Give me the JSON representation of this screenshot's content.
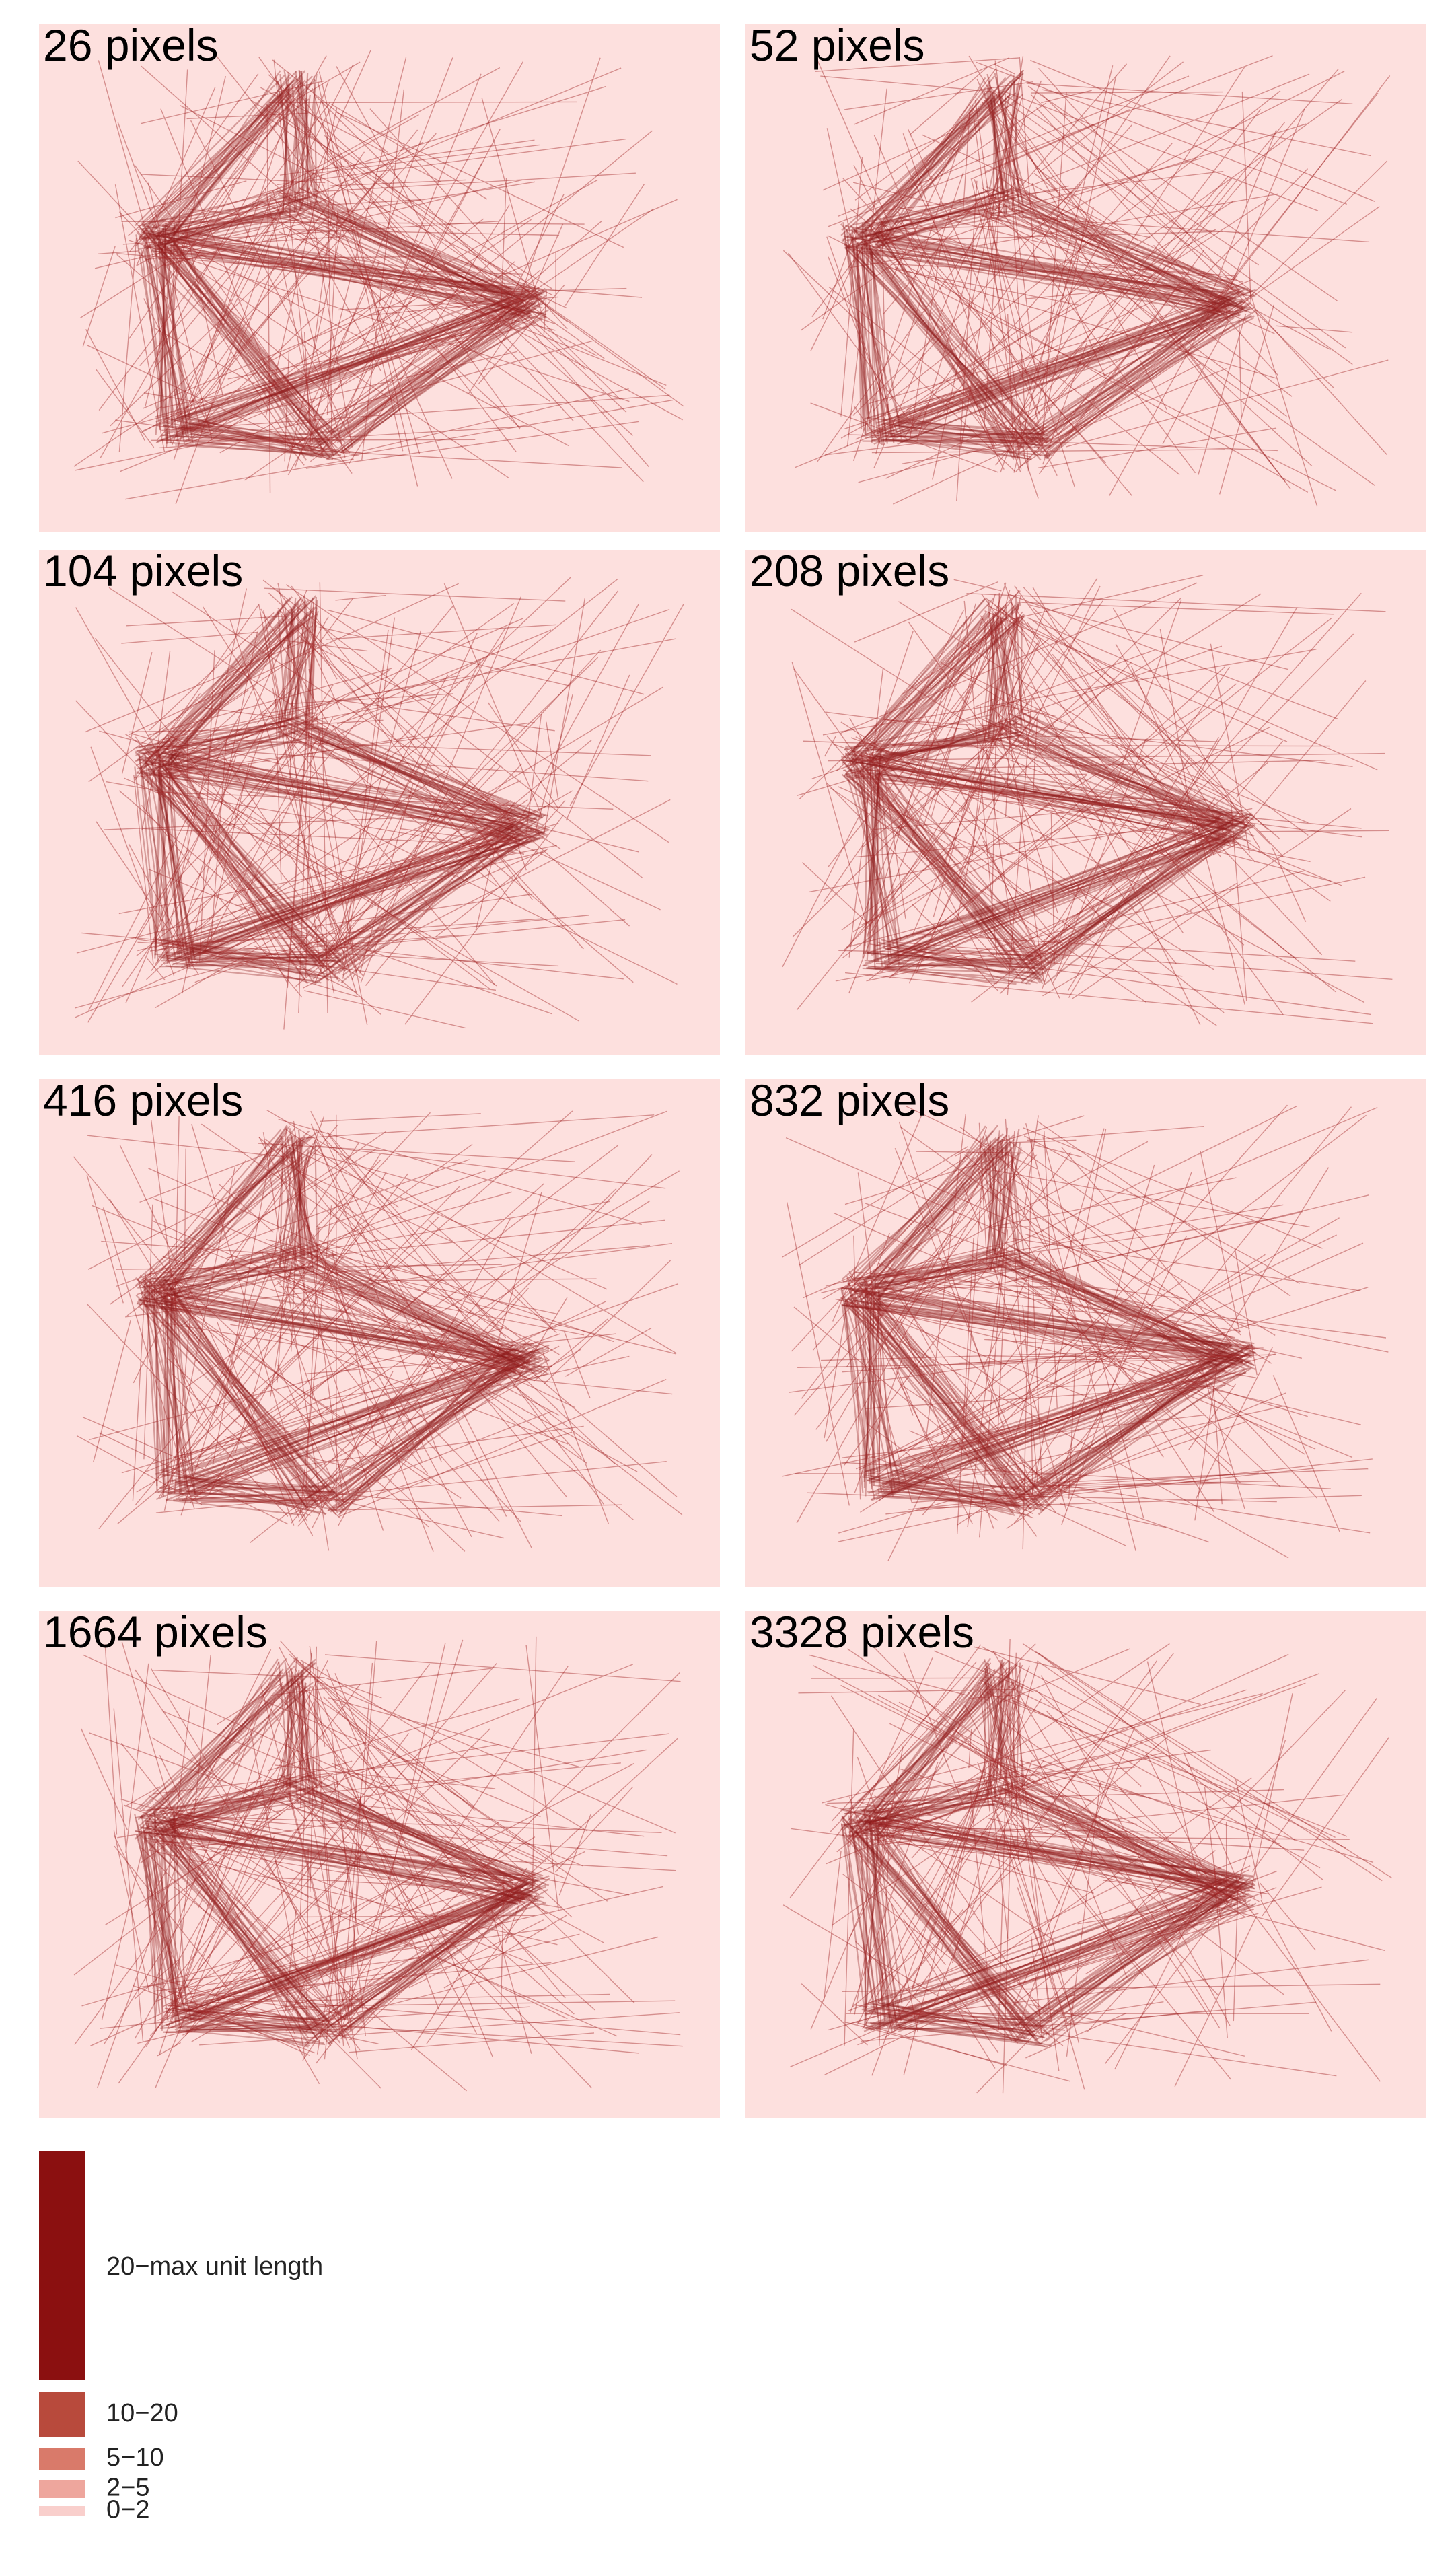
{
  "panels": [
    "26 pixels",
    "52 pixels",
    "104 pixels",
    "208 pixels",
    "416 pixels",
    "832 pixels",
    "1664 pixels",
    "3328 pixels"
  ],
  "legend": [
    "20−max unit length",
    "10−20",
    "5−10",
    "2−5",
    "0−2"
  ]
}
